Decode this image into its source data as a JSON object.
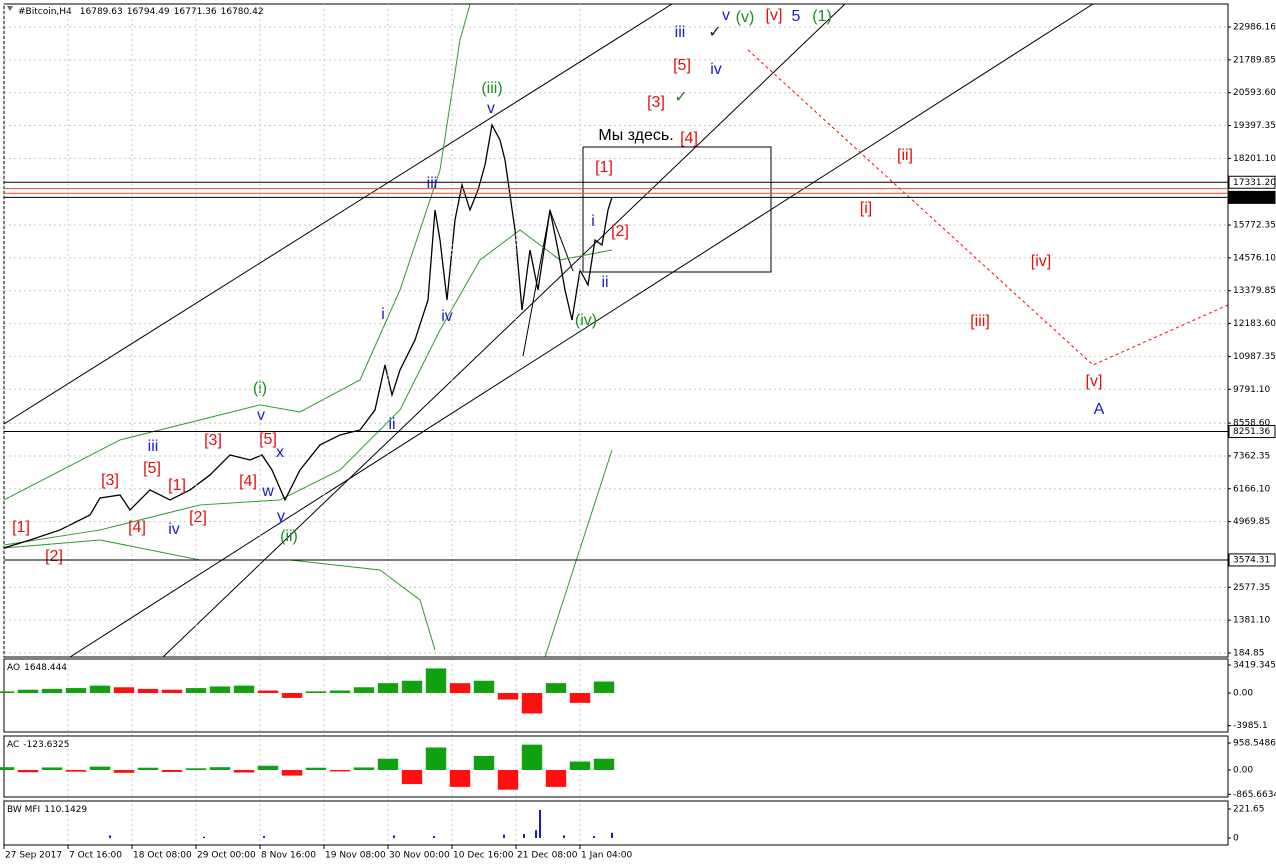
{
  "header": {
    "symbol": "#Bitcoin,H4",
    "ohlc": [
      16789.63,
      16794.49,
      16771.36,
      16780.42
    ]
  },
  "chart_data": [
    {
      "type": "line",
      "name": "#Bitcoin,H4",
      "color": "#000000",
      "grid": true,
      "xlim": [
        0,
        1224
      ],
      "ylim": [
        39.2,
        23824
      ],
      "xticks": [
        {
          "value": 0,
          "label": "27 Sep 2017"
        },
        {
          "value": 64,
          "label": "7 Oct 16:00"
        },
        {
          "value": 128,
          "label": "18 Oct 08:00"
        },
        {
          "value": 192,
          "label": "29 Oct 00:00"
        },
        {
          "value": 256,
          "label": "8 Nov 16:00"
        },
        {
          "value": 320,
          "label": "19 Nov 08:00"
        },
        {
          "value": 384,
          "label": "30 Nov 00:00"
        },
        {
          "value": 448,
          "label": "10 Dec 16:00"
        },
        {
          "value": 512,
          "label": "21 Dec 08:00"
        },
        {
          "value": 576,
          "label": "1 Jan 04:00"
        }
      ],
      "yticks": [
        22986.16,
        21789.85,
        {
          "value": 20593.6,
          "label": "20593.60"
        },
        19397.35,
        {
          "value": 18201.1,
          "label": "18201.10"
        },
        15772.35,
        {
          "value": 14576.1,
          "label": "14576.10"
        },
        13379.85,
        {
          "value": 12183.6,
          "label": "12183.60"
        },
        10987.35,
        {
          "value": 9791.1,
          "label": "9791.10"
        },
        {
          "value": 8558.6,
          "label": "8558.60"
        },
        7362.35,
        {
          "value": 6166.1,
          "label": "6166.10"
        },
        4969.85,
        2577.35,
        {
          "value": 1381.1,
          "label": "1381.10"
        },
        184.85
      ],
      "x": [
        0,
        26,
        56,
        86,
        96,
        116,
        126,
        146,
        166,
        186,
        206,
        226,
        246,
        258,
        268,
        281,
        296,
        316,
        336,
        356,
        371,
        381,
        388,
        396,
        411,
        424,
        431,
        436,
        443,
        451,
        458,
        466,
        474,
        481,
        488,
        496,
        501,
        506,
        511,
        518,
        526,
        534,
        546,
        554,
        561,
        568,
        576,
        584,
        591,
        598,
        604,
        608
      ],
      "values": [
        4011,
        4302,
        4667,
        5213,
        5833,
        5942,
        5395,
        6124,
        5760,
        6124,
        6670,
        7398,
        7216,
        7398,
        6852,
        5760,
        6852,
        7763,
        8127,
        8309,
        9038,
        10676,
        9584,
        10494,
        11587,
        13044,
        16321,
        15229,
        13044,
        15957,
        17232,
        16321,
        17050,
        17960,
        19417,
        18871,
        18142,
        16868,
        15593,
        12680,
        14865,
        13408,
        16321,
        14865,
        13408,
        12315,
        14136,
        13590,
        15229,
        15047,
        16321,
        16780.42
      ],
      "levels": [
        {
          "value": 17331.2,
          "label": "17331.20",
          "color": "#000000"
        },
        {
          "value": 17100,
          "color": "#e0502a"
        },
        {
          "value": 16930,
          "color": "#e0502a"
        },
        {
          "value": 16780.42,
          "label": "16780.42",
          "color": "#000000",
          "style": "boxed"
        },
        {
          "value": 8251.36,
          "label": "8251.36",
          "color": "#000000"
        },
        {
          "value": 3574.31,
          "label": "3574.31",
          "color": "#000000"
        }
      ],
      "drawings": [
        {
          "points": [
            [
              0,
              8527
            ],
            [
              668,
              23824
            ]
          ],
          "color": "#000000"
        },
        {
          "points": [
            [
              66,
              39.2
            ],
            [
              1089,
              23824
            ]
          ],
          "color": "#000000"
        },
        {
          "points": [
            [
              159,
              39.2
            ],
            [
              841,
              23824
            ]
          ],
          "color": "#000000"
        },
        {
          "points": [
            [
              579,
              18616
            ],
            [
              767,
              18616
            ],
            [
              767,
              14063
            ],
            [
              579,
              14063
            ],
            [
              579,
              18616
            ]
          ],
          "color": "#000000"
        },
        {
          "points": [
            [
              519,
              11000
            ],
            [
              546,
              16300
            ],
            [
              569,
              14100
            ]
          ],
          "color": "#000000"
        },
        {
          "points": [
            [
              744,
              22148
            ],
            [
              1089,
              10676
            ],
            [
              1224,
              12862
            ]
          ],
          "color": "#ff0000",
          "dash": true
        },
        {
          "points": [
            [
              0,
              4120
            ],
            [
              96,
              4667
            ],
            [
              196,
              5578
            ],
            [
              276,
              5760
            ],
            [
              336,
              6852
            ],
            [
              396,
              9038
            ],
            [
              436,
              11951
            ],
            [
              476,
              14501
            ],
            [
              516,
              15593
            ],
            [
              556,
              14501
            ],
            [
              608,
              14865
            ]
          ],
          "color": "#2e9b2e"
        },
        {
          "points": [
            [
              0,
              5760
            ],
            [
              116,
              7945
            ],
            [
              256,
              9221
            ],
            [
              296,
              8965
            ],
            [
              356,
              10130
            ],
            [
              396,
              13408
            ],
            [
              436,
              17778
            ],
            [
              456,
              22513
            ],
            [
              466,
              23824
            ]
          ],
          "color": "#2e9b2e"
        },
        {
          "points": [
            [
              0,
              4011
            ],
            [
              96,
              4302
            ],
            [
              196,
              3574
            ],
            [
              286,
              3574
            ],
            [
              376,
              3210
            ],
            [
              416,
              2117
            ],
            [
              431,
              296
            ]
          ],
          "color": "#2e9b2e"
        },
        {
          "points": [
            [
              541,
              39.2
            ],
            [
              608,
              7580
            ]
          ],
          "color": "#2e9b2e"
        }
      ],
      "annotations": [
        {
          "text": "[1]",
          "x": 17,
          "y": 4740,
          "color": "#e01010"
        },
        {
          "text": "[2]",
          "x": 50,
          "y": 3684,
          "color": "#e01010"
        },
        {
          "text": "[3]",
          "x": 106,
          "y": 6452,
          "color": "#e01010"
        },
        {
          "text": "[4]",
          "x": 133,
          "y": 4740,
          "color": "#e01010"
        },
        {
          "text": "[5]",
          "x": 148,
          "y": 6889,
          "color": "#e01010"
        },
        {
          "text": "[1]",
          "x": 173,
          "y": 6270,
          "color": "#e01010"
        },
        {
          "text": "[2]",
          "x": 194,
          "y": 5104,
          "color": "#e01010"
        },
        {
          "text": "[3]",
          "x": 209,
          "y": 7908,
          "color": "#e01010"
        },
        {
          "text": "[4]",
          "x": 244,
          "y": 6415,
          "color": "#e01010"
        },
        {
          "text": "[5]",
          "x": 264,
          "y": 7945,
          "color": "#e01010"
        },
        {
          "text": "iii",
          "x": 149,
          "y": 7690,
          "color": "#1a1ad0"
        },
        {
          "text": "iv",
          "x": 170,
          "y": 4667,
          "color": "#1a1ad0"
        },
        {
          "text": "v",
          "x": 257,
          "y": 8819,
          "color": "#1a1ad0"
        },
        {
          "text": "x",
          "x": 276,
          "y": 7471,
          "color": "#1a1ad0"
        },
        {
          "text": "w",
          "x": 264,
          "y": 6051,
          "color": "#1a1ad0"
        },
        {
          "text": "y",
          "x": 277,
          "y": 5140,
          "color": "#1a1ad0"
        },
        {
          "text": "(i)",
          "x": 256,
          "y": 9802,
          "color": "#1e8c1e"
        },
        {
          "text": "(ii)",
          "x": 285,
          "y": 4412,
          "color": "#1e8c1e"
        },
        {
          "text": "i",
          "x": 379,
          "y": 12498,
          "color": "#1a1ad0"
        },
        {
          "text": "ii",
          "x": 388,
          "y": 8491,
          "color": "#1a1ad0"
        },
        {
          "text": "iii",
          "x": 428,
          "y": 17268,
          "color": "#1a1ad0"
        },
        {
          "text": "iv",
          "x": 443,
          "y": 12425,
          "color": "#1a1ad0"
        },
        {
          "text": "v",
          "x": 487,
          "y": 19999,
          "color": "#1a1ad0"
        },
        {
          "text": "(iii)",
          "x": 488,
          "y": 20728,
          "color": "#1e8c1e"
        },
        {
          "text": "(iv)",
          "x": 582,
          "y": 12279,
          "color": "#1e8c1e"
        },
        {
          "text": "Мы здесь.",
          "x": 632,
          "y": 19017,
          "color": "#000000"
        },
        {
          "text": "[1]",
          "x": 600,
          "y": 17851,
          "color": "#e01010"
        },
        {
          "text": "[2]",
          "x": 616,
          "y": 15520,
          "color": "#e01010"
        },
        {
          "text": "i",
          "x": 589,
          "y": 15884,
          "color": "#1a1ad0"
        },
        {
          "text": "ii",
          "x": 601,
          "y": 13663,
          "color": "#1a1ad0"
        },
        {
          "text": "[3]",
          "x": 652,
          "y": 20218,
          "color": "#e01010"
        },
        {
          "text": "[4]",
          "x": 685,
          "y": 18907,
          "color": "#e01010"
        },
        {
          "text": "[5]",
          "x": 678,
          "y": 21566,
          "color": "#e01010"
        },
        {
          "text": "✓",
          "x": 677,
          "y": 20400,
          "color": "#2e7d2e"
        },
        {
          "text": "iii",
          "x": 676,
          "y": 22768,
          "color": "#1a1ad0"
        },
        {
          "text": "iv",
          "x": 712,
          "y": 21420,
          "color": "#1a1ad0"
        },
        {
          "text": "✓",
          "x": 711,
          "y": 22768,
          "color": "#222222"
        },
        {
          "text": "v",
          "x": 722,
          "y": 23387,
          "color": "#1a1ad0"
        },
        {
          "text": "(v)",
          "x": 741,
          "y": 23314,
          "color": "#1e8c1e"
        },
        {
          "text": "[v]",
          "x": 770,
          "y": 23387,
          "color": "#e01010"
        },
        {
          "text": "5",
          "x": 792,
          "y": 23350,
          "color": "#1a1ad0",
          "size": "large"
        },
        {
          "text": "(1)",
          "x": 818,
          "y": 23350,
          "color": "#1e8c1e",
          "size": "large"
        },
        {
          "text": "[ii]",
          "x": 901,
          "y": 18288,
          "color": "#e01010"
        },
        {
          "text": "[i]",
          "x": 862,
          "y": 16358,
          "color": "#e01010"
        },
        {
          "text": "[iv]",
          "x": 1037,
          "y": 14428,
          "color": "#e01010"
        },
        {
          "text": "[iii]",
          "x": 976,
          "y": 12243,
          "color": "#e01010"
        },
        {
          "text": "[v]",
          "x": 1090,
          "y": 10057,
          "color": "#e01010"
        },
        {
          "text": "A",
          "x": 1095,
          "y": 9037,
          "color": "#1a1ad0",
          "size": "large"
        }
      ]
    },
    {
      "type": "bar",
      "name": "AO",
      "value": 1648.444,
      "up_color": "#10a010",
      "down_color": "#ff1010",
      "xlim": [
        0,
        1224
      ],
      "ylim": [
        -4760,
        4150
      ],
      "yticks": [
        3419.345,
        {
          "value": 0,
          "label": "0.00"
        },
        -3985.1
      ],
      "x": [
        0,
        24,
        48,
        72,
        96,
        120,
        144,
        168,
        192,
        216,
        240,
        264,
        288,
        312,
        336,
        360,
        384,
        408,
        432,
        456,
        480,
        504,
        528,
        552,
        576,
        600
      ],
      "values": [
        200,
        400,
        500,
        600,
        900,
        700,
        500,
        400,
        600,
        800,
        900,
        300,
        -600,
        200,
        300,
        700,
        1200,
        1500,
        3000,
        1200,
        1500,
        -800,
        -2500,
        1200,
        -1200,
        1400
      ]
    },
    {
      "type": "bar",
      "name": "AC",
      "value": -123.6325,
      "up_color": "#10a010",
      "down_color": "#ff1010",
      "xlim": [
        0,
        1224
      ],
      "ylim": [
        -959,
        1207
      ],
      "yticks": [
        958.5486,
        {
          "value": 0,
          "label": "0.00"
        },
        -865.6634
      ],
      "x": [
        0,
        24,
        48,
        72,
        96,
        120,
        144,
        168,
        192,
        216,
        240,
        264,
        288,
        312,
        336,
        360,
        384,
        408,
        432,
        456,
        480,
        504,
        528,
        552,
        576,
        600
      ],
      "values": [
        100,
        -80,
        90,
        -60,
        120,
        -100,
        80,
        -70,
        60,
        100,
        -90,
        150,
        -200,
        80,
        -50,
        90,
        400,
        -500,
        800,
        -600,
        500,
        -700,
        900,
        -600,
        300,
        400
      ]
    },
    {
      "type": "bar",
      "name": "BW MFI",
      "value": 110.1429,
      "color": "#1a1ad0",
      "xlim": [
        0,
        1224
      ],
      "ylim": [
        -53.5,
        282.8
      ],
      "yticks": [
        221.65,
        0
      ],
      "x": [
        106,
        200,
        260,
        390,
        430,
        500,
        520,
        532,
        536,
        560,
        590,
        608
      ],
      "values": [
        20,
        10,
        15,
        20,
        15,
        25,
        30,
        60,
        215,
        20,
        15,
        40
      ]
    }
  ]
}
